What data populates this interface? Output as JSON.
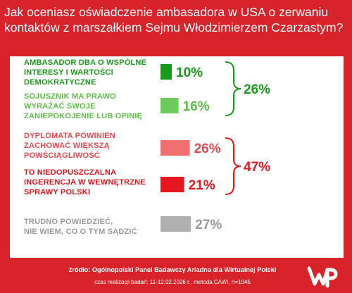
{
  "title_lines": [
    "Jak oceniasz oświadczenie ambasadora w USA o zerwaniu",
    "kontaktów z marszałkiem Sejmu Włodzimierzem Czarzastym?"
  ],
  "chart_data": {
    "type": "bar",
    "title": "Jak oceniasz oświadczenie ambasadora w USA o zerwaniu kontaktów z marszałkiem Sejmu Włodzimierzem Czarzastym?",
    "categories": [
      "AMBASADOR DBA O WSPÓLNE INTERESY I WARTOŚCI DEMOKRATYCZNE",
      "SOJUSZNIK MA PRAWO WYRAŻAĆ SWOJE ZANIEPOKOJENIE LUB OPINIĘ",
      "DYPLOMATA POWINIEN ZACHOWAĆ WIĘKSZĄ POWŚCIĄGLIWOŚĆ",
      "TO NIEDOPUSZCZALNA INGERENCJA W WEWNĘTRZNE SPRAWY POLSKI",
      "TRUDNO POWIEDZIEĆ, NIE WIEM, CO O TYM SĄDZIĆ"
    ],
    "values": [
      10,
      16,
      26,
      21,
      27
    ],
    "value_labels": [
      "10%",
      "16%",
      "26%",
      "21%",
      "27%"
    ],
    "colors": [
      "#1a9a1a",
      "#6ccc5a",
      "#f07070",
      "#e41620",
      "#b0b0b0"
    ],
    "label_colors": [
      "#1a9a1a",
      "#5cbf46",
      "#e84a4f",
      "#e41620",
      "#9a9a9a"
    ],
    "label_lines": [
      [
        "AMBASADOR DBA O WSPÓLNE",
        "INTERESY I WARTOŚCI",
        "DEMOKRATYCZNE"
      ],
      [
        "SOJUSZNIK MA PRAWO",
        "WYRAŻAĆ SWOJE",
        "ZANIEPOKOJENIE LUB OPINIĘ"
      ],
      [
        "DYPLOMATA POWINIEN",
        "ZACHOWAĆ WIĘKSZĄ",
        "POWŚCIĄGLIWOŚĆ"
      ],
      [
        "TO NIEDOPUSZCZALNA",
        "INGERENCJA W WEWNĘTRZNE",
        "SPRAWY POLSKI"
      ],
      [
        "TRUDNO POWIEDZIEĆ,",
        "NIE WIEM, CO O TYM SĄDZIĆ"
      ]
    ],
    "groups": [
      {
        "value_label": "26%",
        "color": "#1a9a1a",
        "members": [
          0,
          1
        ]
      },
      {
        "value_label": "47%",
        "color": "#e41620",
        "members": [
          2,
          3
        ]
      }
    ]
  },
  "footer": {
    "source": "źródło: Ogólnopolski Panel Badawczy Ariadna dla Wirtualnej Polski",
    "meta": "czas realizacji badań: 11-12.02.2026 r., metoda CAWI, n=1045"
  },
  "logo": {
    "name": "wp-logo-icon",
    "color": "#ffffff"
  }
}
